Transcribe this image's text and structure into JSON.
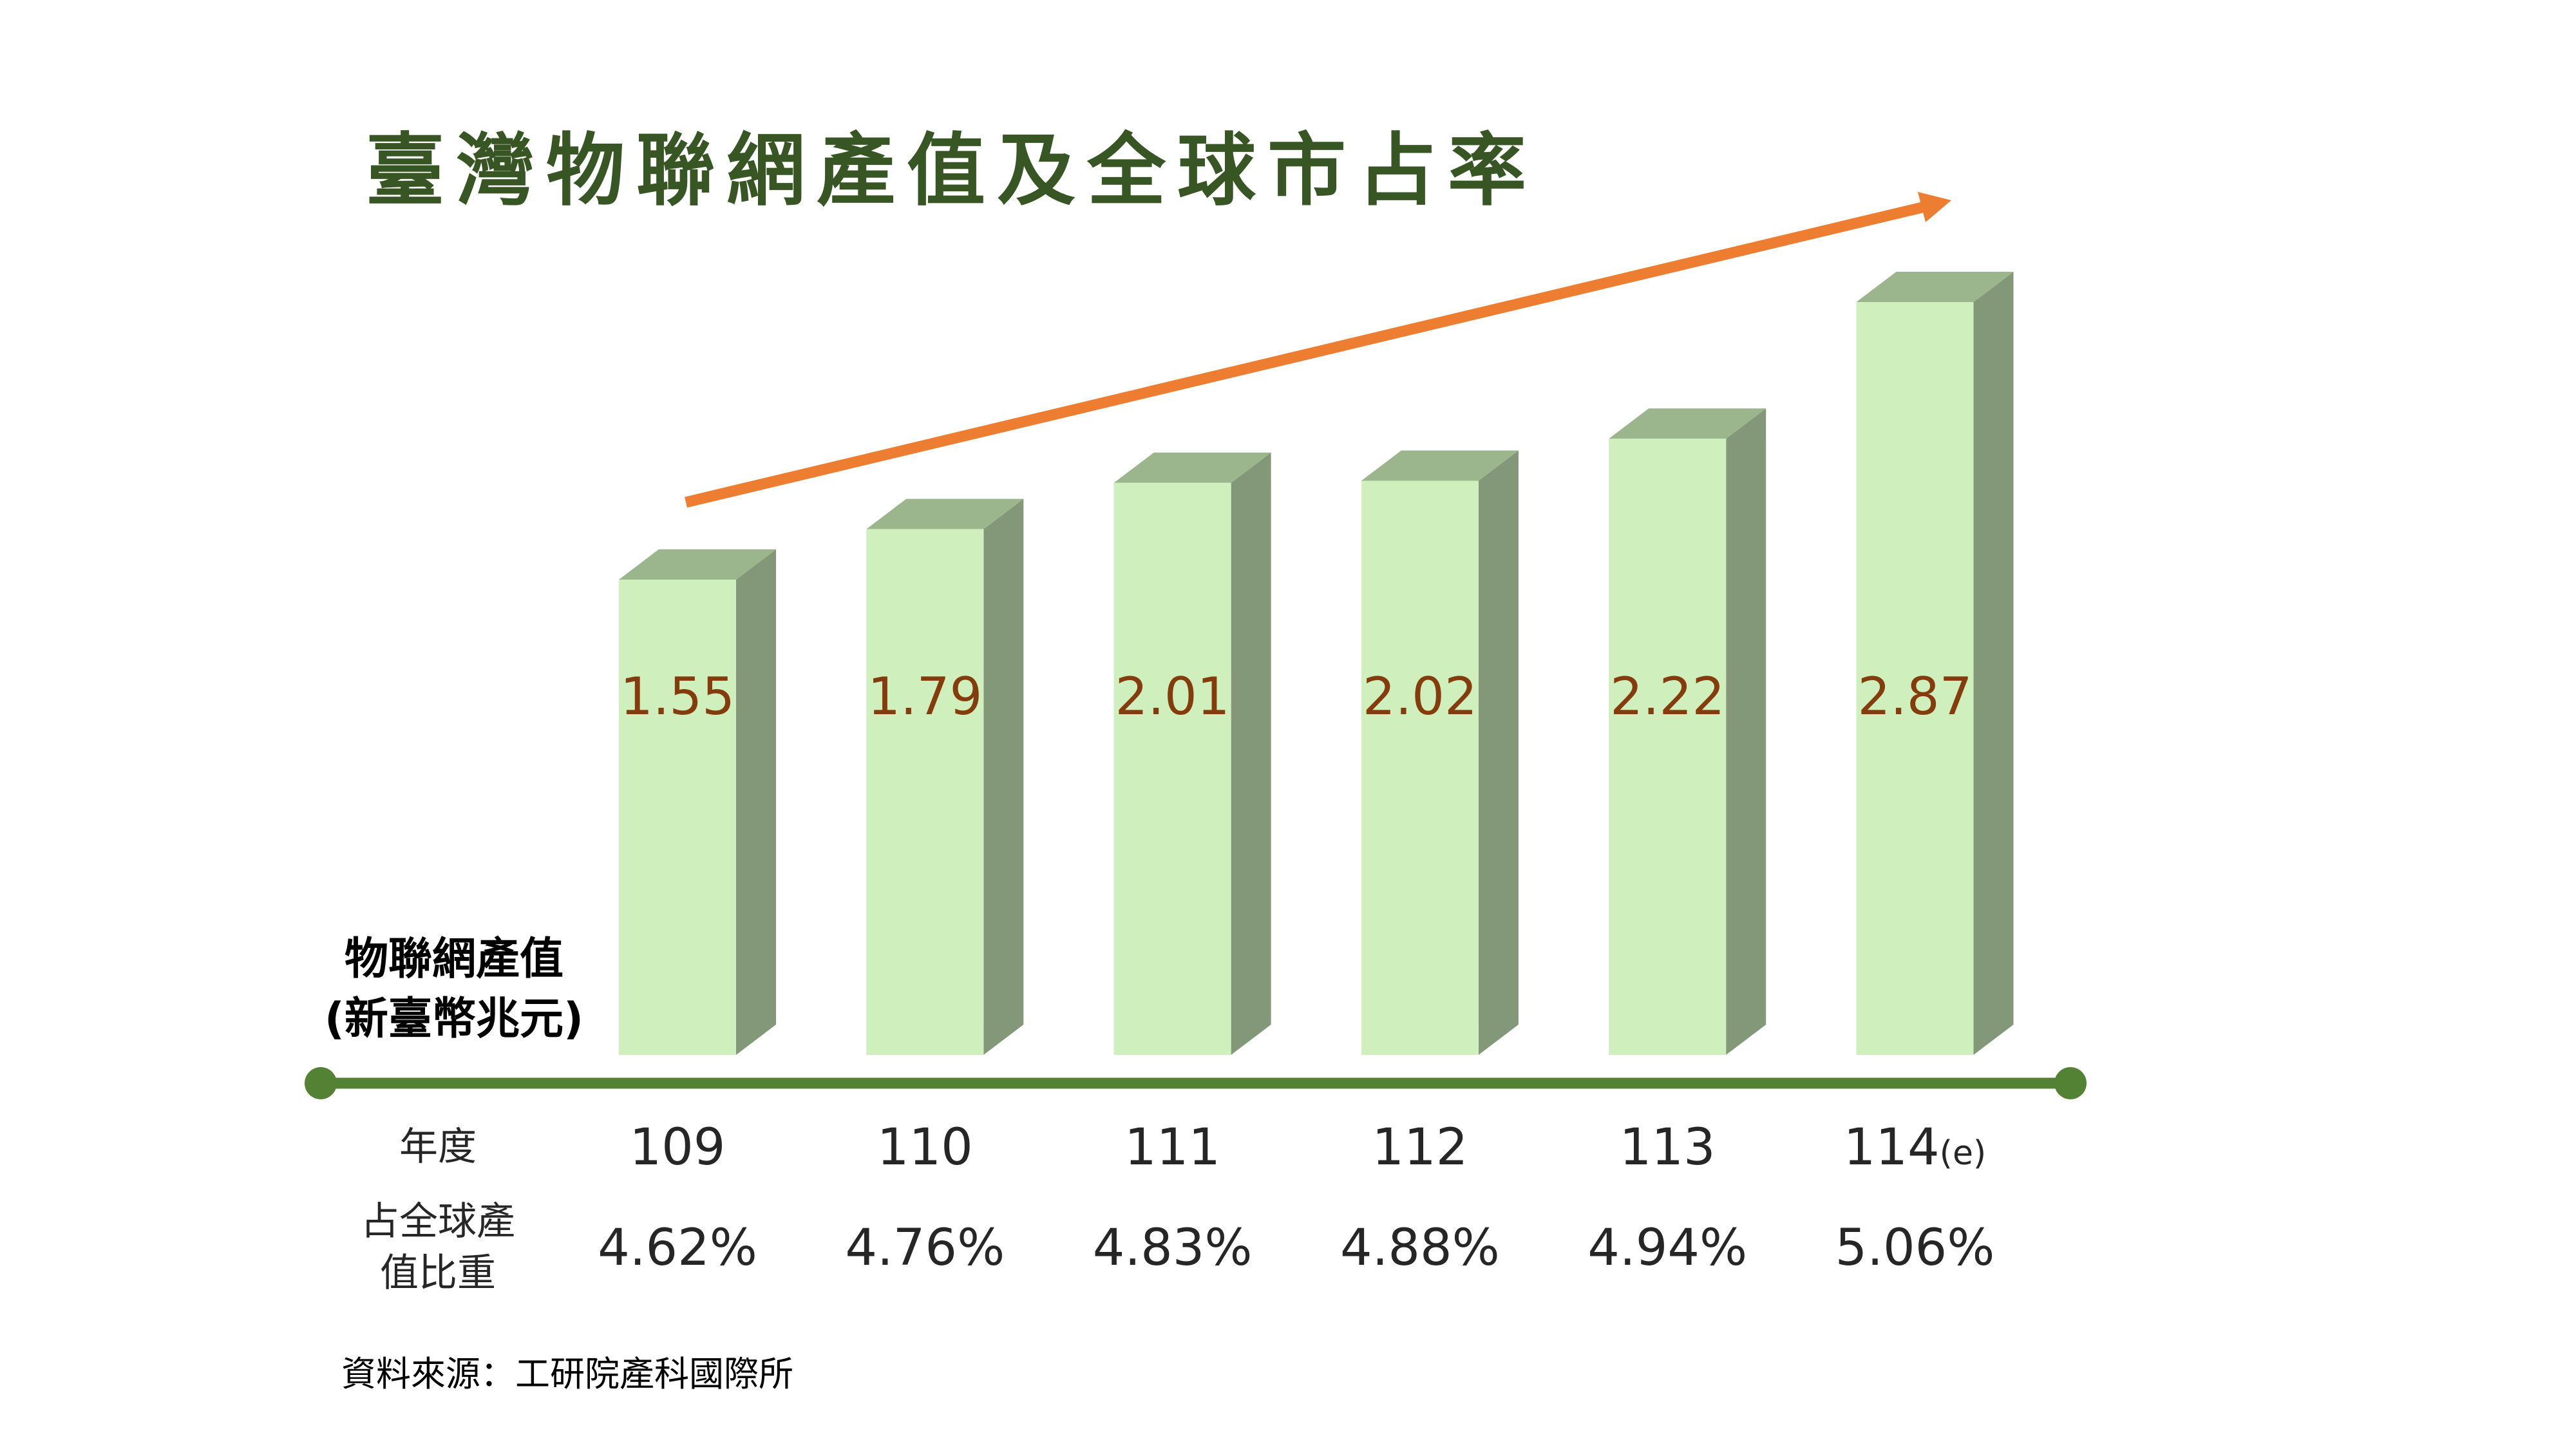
{
  "title": "臺灣物聯網產值及全球市占率",
  "y_label": {
    "line1": "物聯網產值",
    "line2": "(新臺幣兆元)"
  },
  "row_labels": {
    "year": "年度",
    "share_line1": "占全球產",
    "share_line2": "值比重"
  },
  "source": "資料來源：工研院產科國際所",
  "colors": {
    "title": "#375623",
    "bar_front": "#cff0bd",
    "bar_top": "#9bb58c",
    "bar_side": "#839878",
    "value_text": "#843c0c",
    "axis": "#548235",
    "trend_arrow": "#ed7d31",
    "text": "#262626"
  },
  "bars": [
    {
      "value": "1.55",
      "year": "109",
      "year_suffix": "",
      "share": "4.62%"
    },
    {
      "value": "1.79",
      "year": "110",
      "year_suffix": "",
      "share": "4.76%"
    },
    {
      "value": "2.01",
      "year": "111",
      "year_suffix": "",
      "share": "4.83%"
    },
    {
      "value": "2.02",
      "year": "112",
      "year_suffix": "",
      "share": "4.88%"
    },
    {
      "value": "2.22",
      "year": "113",
      "year_suffix": "",
      "share": "4.94%"
    },
    {
      "value": "2.87",
      "year": "114",
      "year_suffix": "(e)",
      "share": "5.06%"
    }
  ],
  "chart_data": {
    "type": "bar",
    "title": "臺灣物聯網產值及全球市占率",
    "categories": [
      "109",
      "110",
      "111",
      "112",
      "113",
      "114(e)"
    ],
    "series": [
      {
        "name": "物聯網產值(新臺幣兆元)",
        "values": [
          1.55,
          1.79,
          2.01,
          2.02,
          2.22,
          2.87
        ]
      },
      {
        "name": "占全球產值比重(%)",
        "values": [
          4.62,
          4.76,
          4.83,
          4.88,
          4.94,
          5.06
        ]
      }
    ],
    "xlabel": "年度",
    "ylabel": "物聯网產值(新臺幣兆元)",
    "style": "3d-column",
    "annotations": [
      "upward trend arrow",
      "114(e) = estimate"
    ],
    "source": "資料來源：工研院產科國際所",
    "grid": false,
    "legend": "none"
  }
}
